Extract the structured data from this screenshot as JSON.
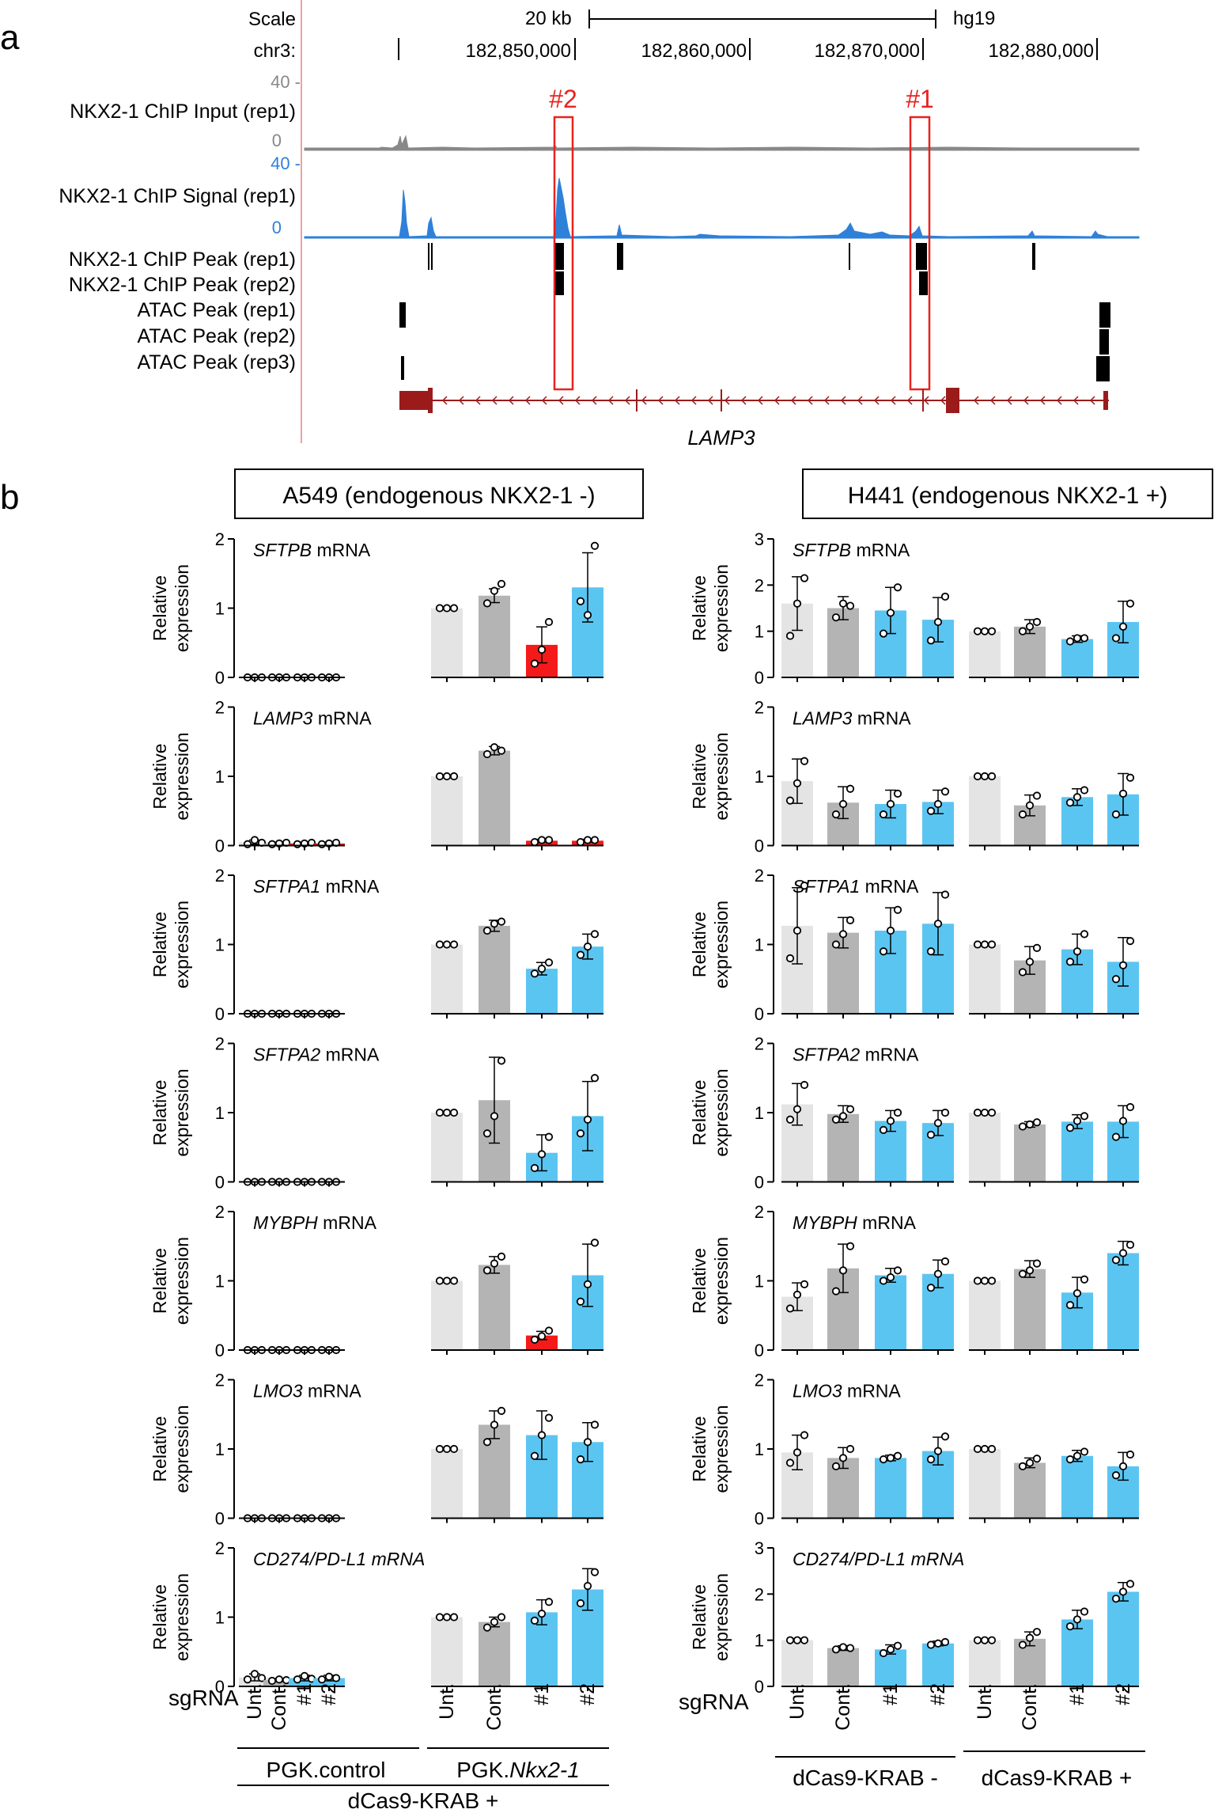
{
  "panel_a": {
    "label": "a",
    "scale_label": "Scale",
    "scale_value": "20 kb",
    "assembly": "hg19",
    "chrom_label": "chr3:",
    "positions": [
      "182,850,000",
      "182,860,000",
      "182,870,000",
      "182,880,000"
    ],
    "box1_label": "#1",
    "box2_label": "#2",
    "gene_name": "LAMP3",
    "tracks": [
      {
        "name": "NKX2-1 ChIP Input (rep1)",
        "max": "40 -",
        "min": "0",
        "color": "#888888"
      },
      {
        "name": "NKX2-1 ChIP Signal (rep1)",
        "max": "40 -",
        "min": "0",
        "color": "#2f80d9"
      },
      {
        "name": "NKX2-1 ChIP Peak (rep1)"
      },
      {
        "name": "NKX2-1 ChIP Peak (rep2)"
      },
      {
        "name": "ATAC Peak (rep1)"
      },
      {
        "name": "ATAC Peak (rep2)"
      },
      {
        "name": "ATAC Peak (rep3)"
      }
    ]
  },
  "panel_b": {
    "label": "b",
    "left_title": "A549 (endogenous NKX2-1 -)",
    "right_title": "H441 (endogenous NKX2-1 +)",
    "y_label_line1": "Relative",
    "y_label_line2": "expression",
    "sgrna_label": "sgRNA",
    "xticks": [
      "Unt.",
      "Cont.",
      "#1",
      "#2",
      "Unt.",
      "Cont.",
      "#1",
      "#2"
    ],
    "left_group1": "PGK.control",
    "left_group2_prefix": "PGK.",
    "left_group2_italic": "Nkx2-1",
    "left_bottom": "dCas9-KRAB +",
    "right_group1": "dCas9-KRAB -",
    "right_group2": "dCas9-KRAB +"
  },
  "colors": {
    "untreated": "#e4e4e4",
    "control": "#b4b4b4",
    "sgrna_blue": "#5bc5f2",
    "sgrna_red": "#f51a1a",
    "signal_blue": "#2f80d9",
    "input_grey": "#888888",
    "highlight_red": "#e8231f",
    "gene_dark_red": "#9b1b1b"
  },
  "chart_data": [
    {
      "type": "bar",
      "panel": "A549",
      "gene": "SFTPB",
      "ylim": [
        0,
        2
      ],
      "yticks": [
        "0",
        "1",
        "2"
      ],
      "values": [
        0,
        0,
        0,
        0,
        1.0,
        1.18,
        0.47,
        1.3
      ],
      "errors": [
        0,
        0,
        0,
        0,
        0,
        0.1,
        0.26,
        0.5
      ],
      "points": [
        [
          0,
          0,
          0
        ],
        [
          0,
          0,
          0
        ],
        [
          0,
          0,
          0
        ],
        [
          0,
          0,
          0
        ],
        [
          1,
          1,
          1
        ],
        [
          1.07,
          1.25,
          1.35
        ],
        [
          0.2,
          0.4,
          0.8
        ],
        [
          1.1,
          0.9,
          1.9
        ]
      ],
      "fills": [
        "untreated",
        "control",
        "sgrna_blue",
        "sgrna_blue",
        "untreated",
        "control",
        "sgrna_red",
        "sgrna_blue"
      ]
    },
    {
      "type": "bar",
      "panel": "A549",
      "gene": "LAMP3",
      "ylim": [
        0,
        2
      ],
      "yticks": [
        "0",
        "1",
        "2"
      ],
      "values": [
        0.05,
        0.03,
        0.03,
        0.03,
        1.0,
        1.37,
        0.07,
        0.07
      ],
      "errors": [
        0.03,
        0.02,
        0.02,
        0.02,
        0,
        0.06,
        0.02,
        0.02
      ],
      "points": [
        [
          0.02,
          0.08,
          0.04
        ],
        [
          0.02,
          0.03,
          0.04
        ],
        [
          0.02,
          0.03,
          0.04
        ],
        [
          0.02,
          0.03,
          0.04
        ],
        [
          1,
          1,
          1
        ],
        [
          1.32,
          1.42,
          1.37
        ],
        [
          0.05,
          0.08,
          0.08
        ],
        [
          0.05,
          0.08,
          0.08
        ]
      ],
      "fills": [
        "untreated",
        "control",
        "sgrna_red",
        "sgrna_red",
        "untreated",
        "control",
        "sgrna_red",
        "sgrna_red"
      ]
    },
    {
      "type": "bar",
      "panel": "A549",
      "gene": "SFTPA1",
      "ylim": [
        0,
        2
      ],
      "yticks": [
        "0",
        "1",
        "2"
      ],
      "values": [
        0,
        0,
        0,
        0,
        1.0,
        1.27,
        0.65,
        0.97
      ],
      "errors": [
        0,
        0,
        0,
        0,
        0,
        0.08,
        0.09,
        0.18
      ],
      "points": [
        [
          0,
          0,
          0
        ],
        [
          0,
          0,
          0
        ],
        [
          0,
          0,
          0
        ],
        [
          0,
          0,
          0
        ],
        [
          1,
          1,
          1
        ],
        [
          1.2,
          1.3,
          1.33
        ],
        [
          0.58,
          0.65,
          0.74
        ],
        [
          0.85,
          0.97,
          1.15
        ]
      ],
      "fills": [
        "untreated",
        "control",
        "sgrna_blue",
        "sgrna_blue",
        "untreated",
        "control",
        "sgrna_blue",
        "sgrna_blue"
      ]
    },
    {
      "type": "bar",
      "panel": "A549",
      "gene": "SFTPA2",
      "ylim": [
        0,
        2
      ],
      "yticks": [
        "0",
        "1",
        "2"
      ],
      "values": [
        0,
        0,
        0,
        0,
        1.0,
        1.18,
        0.42,
        0.95
      ],
      "errors": [
        0,
        0,
        0,
        0,
        0,
        0.62,
        0.26,
        0.5
      ],
      "points": [
        [
          0,
          0,
          0
        ],
        [
          0,
          0,
          0
        ],
        [
          0,
          0,
          0
        ],
        [
          0,
          0,
          0
        ],
        [
          1,
          1,
          1
        ],
        [
          0.7,
          0.95,
          1.75
        ],
        [
          0.2,
          0.4,
          0.65
        ],
        [
          0.7,
          0.9,
          1.5
        ]
      ],
      "fills": [
        "untreated",
        "control",
        "sgrna_blue",
        "sgrna_blue",
        "untreated",
        "control",
        "sgrna_blue",
        "sgrna_blue"
      ]
    },
    {
      "type": "bar",
      "panel": "A549",
      "gene": "MYBPH",
      "ylim": [
        0,
        2
      ],
      "yticks": [
        "0",
        "1",
        "2"
      ],
      "values": [
        0,
        0,
        0,
        0,
        1.0,
        1.23,
        0.21,
        1.08
      ],
      "errors": [
        0,
        0,
        0,
        0,
        0,
        0.12,
        0.06,
        0.45
      ],
      "points": [
        [
          0,
          0,
          0
        ],
        [
          0,
          0,
          0
        ],
        [
          0,
          0,
          0
        ],
        [
          0,
          0,
          0
        ],
        [
          1,
          1,
          1
        ],
        [
          1.15,
          1.25,
          1.35
        ],
        [
          0.15,
          0.2,
          0.28
        ],
        [
          0.7,
          0.95,
          1.55
        ]
      ],
      "fills": [
        "untreated",
        "control",
        "sgrna_blue",
        "sgrna_blue",
        "untreated",
        "control",
        "sgrna_red",
        "sgrna_blue"
      ]
    },
    {
      "type": "bar",
      "panel": "A549",
      "gene": "LMO3",
      "ylim": [
        0,
        2
      ],
      "yticks": [
        "0",
        "1",
        "2"
      ],
      "values": [
        0,
        0,
        0,
        0,
        1.0,
        1.35,
        1.2,
        1.1
      ],
      "errors": [
        0,
        0,
        0,
        0,
        0,
        0.2,
        0.35,
        0.28
      ],
      "points": [
        [
          0,
          0,
          0
        ],
        [
          0,
          0,
          0
        ],
        [
          0,
          0,
          0
        ],
        [
          0,
          0,
          0
        ],
        [
          1,
          1,
          1
        ],
        [
          1.1,
          1.35,
          1.55
        ],
        [
          0.9,
          1.2,
          1.45
        ],
        [
          0.85,
          1.1,
          1.35
        ]
      ],
      "fills": [
        "untreated",
        "control",
        "sgrna_blue",
        "sgrna_blue",
        "untreated",
        "control",
        "sgrna_blue",
        "sgrna_blue"
      ]
    },
    {
      "type": "bar",
      "panel": "A549",
      "gene": "CD274/PD-L1",
      "ylim": [
        0,
        2
      ],
      "yticks": [
        "0",
        "1",
        "2"
      ],
      "values": [
        0.13,
        0.09,
        0.12,
        0.12,
        1.0,
        0.93,
        1.07,
        1.4
      ],
      "errors": [
        0.05,
        0.02,
        0.04,
        0.04,
        0,
        0.07,
        0.18,
        0.3
      ],
      "points": [
        [
          0.1,
          0.18,
          0.12
        ],
        [
          0.08,
          0.1,
          0.09
        ],
        [
          0.1,
          0.15,
          0.11
        ],
        [
          0.1,
          0.14,
          0.12
        ],
        [
          1,
          1,
          1
        ],
        [
          0.85,
          0.93,
          1.0
        ],
        [
          0.95,
          1.05,
          1.22
        ],
        [
          1.2,
          1.45,
          1.65
        ]
      ],
      "fills": [
        "untreated",
        "control",
        "sgrna_blue",
        "sgrna_blue",
        "untreated",
        "control",
        "sgrna_blue",
        "sgrna_blue"
      ]
    },
    {
      "type": "bar",
      "panel": "H441",
      "gene": "SFTPB",
      "ylim": [
        0,
        3
      ],
      "yticks": [
        "0",
        "1",
        "2",
        "3"
      ],
      "values": [
        1.6,
        1.5,
        1.45,
        1.25,
        1.0,
        1.1,
        0.83,
        1.2
      ],
      "errors": [
        0.58,
        0.25,
        0.5,
        0.48,
        0,
        0.15,
        0.07,
        0.45
      ],
      "points": [
        [
          0.9,
          1.6,
          2.15
        ],
        [
          1.3,
          1.6,
          1.55
        ],
        [
          0.95,
          1.4,
          1.95
        ],
        [
          0.8,
          1.2,
          1.75
        ],
        [
          1,
          1,
          1
        ],
        [
          1.0,
          1.1,
          1.2
        ],
        [
          0.78,
          0.85,
          0.85
        ],
        [
          0.85,
          1.1,
          1.6
        ]
      ],
      "fills": [
        "untreated",
        "control",
        "sgrna_blue",
        "sgrna_blue",
        "untreated",
        "control",
        "sgrna_blue",
        "sgrna_blue"
      ]
    },
    {
      "type": "bar",
      "panel": "H441",
      "gene": "LAMP3",
      "ylim": [
        0,
        2
      ],
      "yticks": [
        "0",
        "1",
        "2"
      ],
      "values": [
        0.93,
        0.62,
        0.6,
        0.63,
        1.0,
        0.58,
        0.7,
        0.74
      ],
      "errors": [
        0.32,
        0.23,
        0.2,
        0.17,
        0,
        0.15,
        0.12,
        0.3
      ],
      "points": [
        [
          0.65,
          0.9,
          1.22
        ],
        [
          0.45,
          0.6,
          0.82
        ],
        [
          0.45,
          0.6,
          0.75
        ],
        [
          0.5,
          0.6,
          0.78
        ],
        [
          1,
          1,
          1
        ],
        [
          0.45,
          0.58,
          0.72
        ],
        [
          0.62,
          0.7,
          0.8
        ],
        [
          0.45,
          0.75,
          0.98
        ]
      ],
      "fills": [
        "untreated",
        "control",
        "sgrna_blue",
        "sgrna_blue",
        "untreated",
        "control",
        "sgrna_blue",
        "sgrna_blue"
      ]
    },
    {
      "type": "bar",
      "panel": "H441",
      "gene": "SFTPA1",
      "ylim": [
        0,
        2
      ],
      "yticks": [
        "0",
        "1",
        "2"
      ],
      "values": [
        1.27,
        1.17,
        1.2,
        1.3,
        1.0,
        0.77,
        0.93,
        0.75
      ],
      "errors": [
        0.55,
        0.22,
        0.33,
        0.45,
        0,
        0.2,
        0.22,
        0.35
      ],
      "points": [
        [
          0.8,
          1.2,
          1.85
        ],
        [
          1.0,
          1.15,
          1.35
        ],
        [
          0.9,
          1.2,
          1.5
        ],
        [
          0.9,
          1.3,
          1.72
        ],
        [
          1,
          1,
          1
        ],
        [
          0.6,
          0.75,
          0.95
        ],
        [
          0.75,
          0.9,
          1.15
        ],
        [
          0.5,
          0.7,
          1.05
        ]
      ],
      "fills": [
        "untreated",
        "control",
        "sgrna_blue",
        "sgrna_blue",
        "untreated",
        "control",
        "sgrna_blue",
        "sgrna_blue"
      ]
    },
    {
      "type": "bar",
      "panel": "H441",
      "gene": "SFTPA2",
      "ylim": [
        0,
        2
      ],
      "yticks": [
        "0",
        "1",
        "2"
      ],
      "values": [
        1.12,
        0.98,
        0.88,
        0.85,
        1.0,
        0.83,
        0.87,
        0.87
      ],
      "errors": [
        0.3,
        0.12,
        0.15,
        0.18,
        0,
        0.04,
        0.1,
        0.23
      ],
      "points": [
        [
          0.9,
          1.05,
          1.4
        ],
        [
          0.9,
          0.95,
          1.05
        ],
        [
          0.75,
          0.88,
          1.0
        ],
        [
          0.68,
          0.85,
          1.0
        ],
        [
          1,
          1,
          1
        ],
        [
          0.8,
          0.83,
          0.86
        ],
        [
          0.78,
          0.88,
          0.95
        ],
        [
          0.65,
          0.88,
          1.08
        ]
      ],
      "fills": [
        "untreated",
        "control",
        "sgrna_blue",
        "sgrna_blue",
        "untreated",
        "control",
        "sgrna_blue",
        "sgrna_blue"
      ]
    },
    {
      "type": "bar",
      "panel": "H441",
      "gene": "MYBPH",
      "ylim": [
        0,
        2
      ],
      "yticks": [
        "0",
        "1",
        "2"
      ],
      "values": [
        0.77,
        1.18,
        1.08,
        1.1,
        1.0,
        1.17,
        0.83,
        1.4
      ],
      "errors": [
        0.2,
        0.35,
        0.1,
        0.2,
        0,
        0.12,
        0.22,
        0.17
      ],
      "points": [
        [
          0.6,
          0.8,
          0.95
        ],
        [
          0.85,
          1.15,
          1.5
        ],
        [
          1.0,
          1.05,
          1.15
        ],
        [
          0.9,
          1.1,
          1.28
        ],
        [
          1,
          1,
          1
        ],
        [
          1.1,
          1.15,
          1.25
        ],
        [
          0.65,
          0.82,
          1.02
        ],
        [
          1.3,
          1.4,
          1.52
        ]
      ],
      "fills": [
        "untreated",
        "control",
        "sgrna_blue",
        "sgrna_blue",
        "untreated",
        "control",
        "sgrna_blue",
        "sgrna_blue"
      ]
    },
    {
      "type": "bar",
      "panel": "H441",
      "gene": "LMO3",
      "ylim": [
        0,
        2
      ],
      "yticks": [
        "0",
        "1",
        "2"
      ],
      "values": [
        0.95,
        0.87,
        0.87,
        0.97,
        1.0,
        0.8,
        0.9,
        0.75
      ],
      "errors": [
        0.25,
        0.15,
        0.04,
        0.2,
        0,
        0.07,
        0.08,
        0.2
      ],
      "points": [
        [
          0.8,
          0.95,
          1.2
        ],
        [
          0.75,
          0.87,
          1.0
        ],
        [
          0.85,
          0.87,
          0.9
        ],
        [
          0.85,
          0.97,
          1.18
        ],
        [
          1,
          1,
          1
        ],
        [
          0.75,
          0.8,
          0.86
        ],
        [
          0.85,
          0.9,
          0.96
        ],
        [
          0.62,
          0.75,
          0.92
        ]
      ],
      "fills": [
        "untreated",
        "control",
        "sgrna_blue",
        "sgrna_blue",
        "untreated",
        "control",
        "sgrna_blue",
        "sgrna_blue"
      ]
    },
    {
      "type": "bar",
      "panel": "H441",
      "gene": "CD274/PD-L1",
      "ylim": [
        0,
        3
      ],
      "yticks": [
        "0",
        "1",
        "2",
        "3"
      ],
      "values": [
        1.0,
        0.83,
        0.8,
        0.93,
        1.0,
        1.03,
        1.45,
        2.05
      ],
      "errors": [
        0.02,
        0.05,
        0.1,
        0.05,
        0,
        0.15,
        0.2,
        0.2
      ],
      "points": [
        [
          1,
          1,
          1
        ],
        [
          0.8,
          0.85,
          0.83
        ],
        [
          0.72,
          0.8,
          0.88
        ],
        [
          0.9,
          0.93,
          0.96
        ],
        [
          1,
          1,
          1
        ],
        [
          0.9,
          1.05,
          1.18
        ],
        [
          1.3,
          1.45,
          1.62
        ],
        [
          1.9,
          2.05,
          2.22
        ]
      ],
      "fills": [
        "untreated",
        "control",
        "sgrna_blue",
        "sgrna_blue",
        "untreated",
        "control",
        "sgrna_blue",
        "sgrna_blue"
      ]
    }
  ]
}
